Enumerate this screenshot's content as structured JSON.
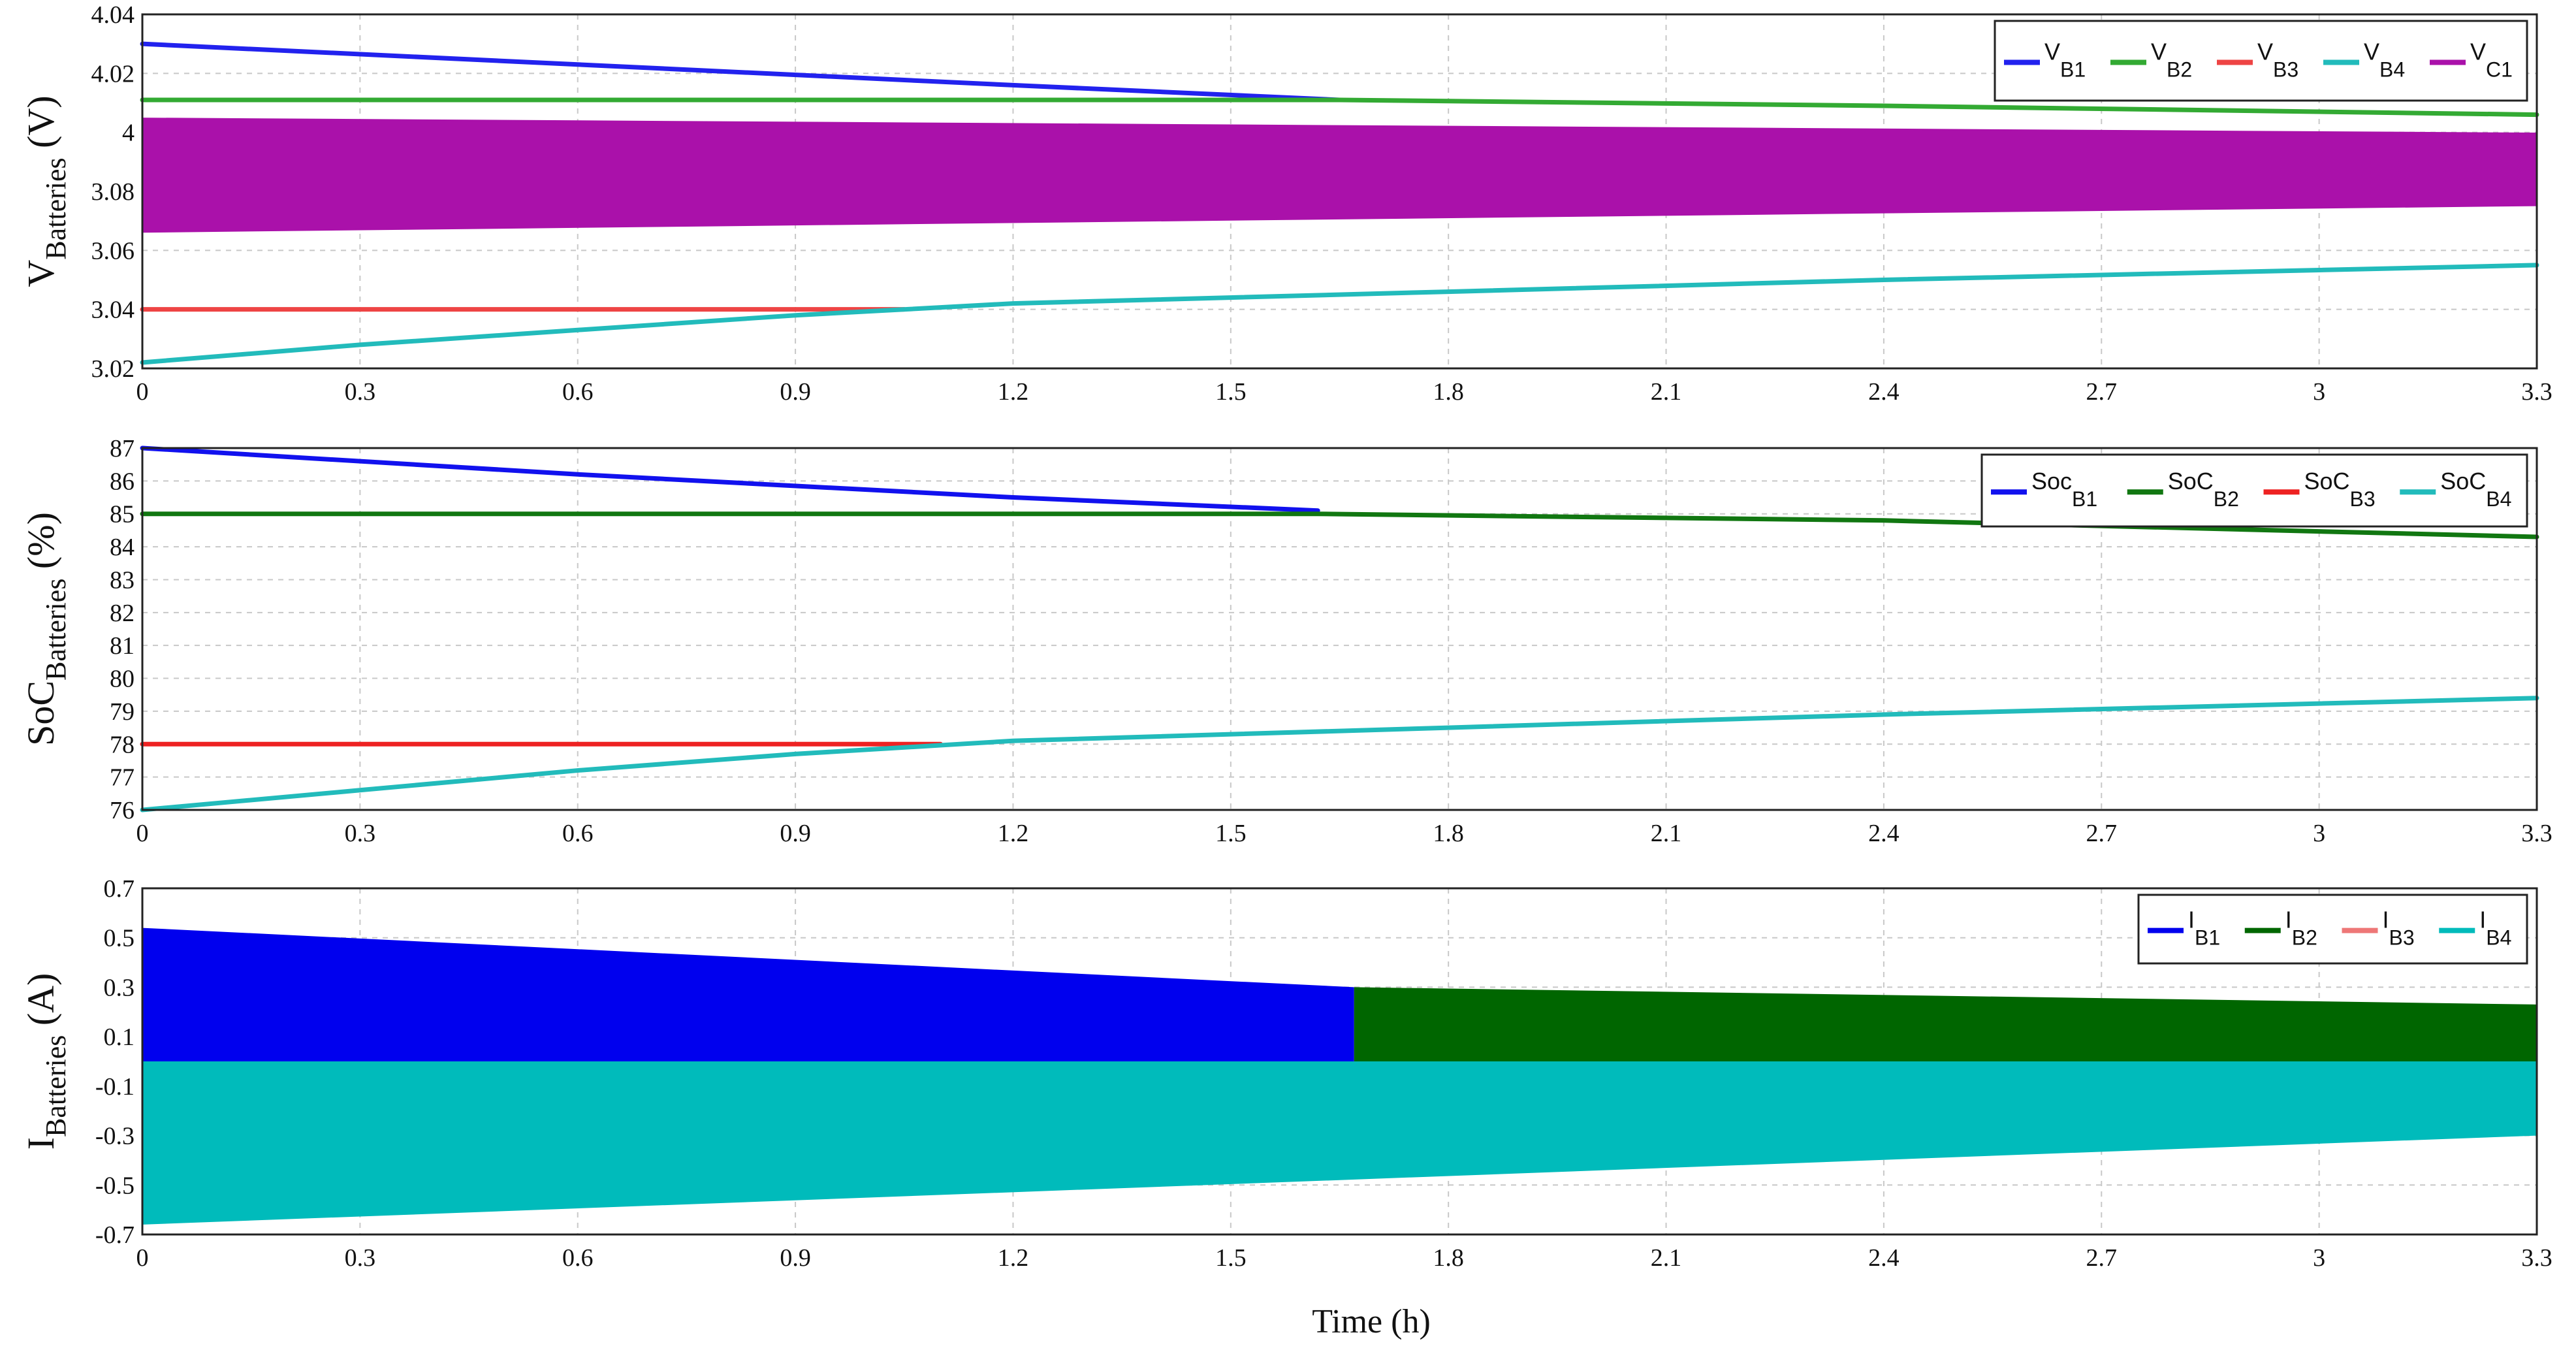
{
  "chart_data": [
    {
      "type": "line",
      "ylabel": {
        "main": "V",
        "sub": "Batteries",
        "unit": " (V)"
      },
      "xlim": [
        0,
        3.3
      ],
      "ylim": [
        3.02,
        4.04
      ],
      "x_ticks": [
        "0",
        "0.3",
        "0.6",
        "0.9",
        "1.2",
        "1.5",
        "1.8",
        "2.1",
        "2.4",
        "2.7",
        "3",
        "3.3"
      ],
      "y_ticks": [
        {
          "v": 3.02,
          "label": "3.02"
        },
        {
          "v": 3.04,
          "label": "3.04"
        },
        {
          "v": 3.06,
          "label": "3.06"
        },
        {
          "v": 3.08,
          "label": "3.08"
        },
        {
          "v": 4.0,
          "label": "4"
        },
        {
          "v": 4.02,
          "label": "4.02"
        },
        {
          "v": 4.04,
          "label": "4.04"
        }
      ],
      "y_display": [
        [
          3.02,
          0
        ],
        [
          3.04,
          1
        ],
        [
          3.06,
          2
        ],
        [
          3.08,
          3
        ],
        [
          4.0,
          4
        ],
        [
          4.02,
          5
        ],
        [
          4.04,
          6
        ]
      ],
      "grid": true,
      "legend_position": "top-right",
      "series": [
        {
          "main": "V",
          "sub": "B1",
          "color": "#2222ee",
          "kind": "line",
          "x": [
            0,
            0.6,
            1.2,
            1.65
          ],
          "y": [
            4.03,
            4.023,
            4.016,
            4.011
          ]
        },
        {
          "main": "V",
          "sub": "B2",
          "color": "#33aa33",
          "kind": "line",
          "x": [
            0,
            1.65,
            2.4,
            3.3
          ],
          "y": [
            4.011,
            4.011,
            4.009,
            4.006
          ]
        },
        {
          "main": "V",
          "sub": "B3",
          "color": "#ee4444",
          "kind": "line",
          "x": [
            0,
            1.05
          ],
          "y": [
            3.04,
            3.04
          ]
        },
        {
          "main": "V",
          "sub": "B4",
          "color": "#22bbbb",
          "kind": "line",
          "x": [
            0,
            0.3,
            0.6,
            0.9,
            1.2,
            1.8,
            2.4,
            3.3
          ],
          "y": [
            3.022,
            3.028,
            3.033,
            3.038,
            3.042,
            3.046,
            3.05,
            3.055
          ]
        },
        {
          "main": "V",
          "sub": "C1",
          "color": "#aa11aa",
          "kind": "band",
          "x": [
            0,
            3.3
          ],
          "upper": [
            4.005,
            3.996
          ],
          "lower": [
            3.066,
            3.075
          ]
        }
      ]
    },
    {
      "type": "line",
      "ylabel": {
        "main": "SoC",
        "sub": "Batteries",
        "unit": " (%)"
      },
      "xlim": [
        0,
        3.3
      ],
      "ylim": [
        76,
        87
      ],
      "x_ticks": [
        "0",
        "0.3",
        "0.6",
        "0.9",
        "1.2",
        "1.5",
        "1.8",
        "2.1",
        "2.4",
        "2.7",
        "3",
        "3.3"
      ],
      "y_ticks": [
        {
          "v": 76,
          "label": "76"
        },
        {
          "v": 77,
          "label": "77"
        },
        {
          "v": 78,
          "label": "78"
        },
        {
          "v": 79,
          "label": "79"
        },
        {
          "v": 80,
          "label": "80"
        },
        {
          "v": 81,
          "label": "81"
        },
        {
          "v": 82,
          "label": "82"
        },
        {
          "v": 83,
          "label": "83"
        },
        {
          "v": 84,
          "label": "84"
        },
        {
          "v": 85,
          "label": "85"
        },
        {
          "v": 86,
          "label": "86"
        },
        {
          "v": 87,
          "label": "87"
        }
      ],
      "grid": true,
      "legend_position": "top-right",
      "series": [
        {
          "main": "Soc",
          "sub": "B1",
          "color": "#1111ee",
          "kind": "line",
          "x": [
            0,
            0.6,
            1.2,
            1.62
          ],
          "y": [
            87,
            86.2,
            85.5,
            85.1
          ]
        },
        {
          "main": "SoC",
          "sub": "B2",
          "color": "#117711",
          "kind": "line",
          "x": [
            0,
            1.62,
            2.4,
            3.3
          ],
          "y": [
            85,
            85,
            84.8,
            84.3
          ]
        },
        {
          "main": "SoC",
          "sub": "B3",
          "color": "#ee2222",
          "kind": "line",
          "x": [
            0,
            1.1
          ],
          "y": [
            78,
            78
          ]
        },
        {
          "main": "SoC",
          "sub": "B4",
          "color": "#22bbbb",
          "kind": "line",
          "x": [
            0,
            0.3,
            0.6,
            0.9,
            1.2,
            1.8,
            2.4,
            3.3
          ],
          "y": [
            76,
            76.6,
            77.2,
            77.7,
            78.1,
            78.5,
            78.9,
            79.4
          ]
        }
      ]
    },
    {
      "type": "area",
      "ylabel": {
        "main": "I",
        "sub": "Batteries",
        "unit": " (A)"
      },
      "xlim": [
        0,
        3.3
      ],
      "ylim": [
        -0.7,
        0.7
      ],
      "x_ticks": [
        "0",
        "0.3",
        "0.6",
        "0.9",
        "1.2",
        "1.5",
        "1.8",
        "2.1",
        "2.4",
        "2.7",
        "3",
        "3.3"
      ],
      "y_ticks": [
        {
          "v": -0.7,
          "label": "-0.7"
        },
        {
          "v": -0.5,
          "label": "-0.5"
        },
        {
          "v": -0.3,
          "label": "-0.3"
        },
        {
          "v": -0.1,
          "label": "-0.1"
        },
        {
          "v": 0.1,
          "label": "0.1"
        },
        {
          "v": 0.3,
          "label": "0.3"
        },
        {
          "v": 0.5,
          "label": "0.5"
        },
        {
          "v": 0.7,
          "label": "0.7"
        }
      ],
      "grid": true,
      "legend_position": "top-right",
      "xlabel": "Time (h)",
      "series": [
        {
          "main": "I",
          "sub": "B1",
          "color": "#0000ee",
          "kind": "band",
          "x": [
            0,
            1.67
          ],
          "upper": [
            0.54,
            0.3
          ],
          "lower": [
            0,
            0
          ]
        },
        {
          "main": "I",
          "sub": "B2",
          "color": "#006600",
          "kind": "band",
          "x": [
            1.67,
            3.3
          ],
          "upper": [
            0.3,
            0.23
          ],
          "lower": [
            0,
            0
          ]
        },
        {
          "main": "I",
          "sub": "B3",
          "color": "#ee7777",
          "kind": "legend-only"
        },
        {
          "main": "I",
          "sub": "B4",
          "color": "#00bbbb",
          "kind": "band",
          "x": [
            0,
            3.3
          ],
          "upper": [
            0,
            0
          ],
          "lower": [
            -0.66,
            -0.3
          ]
        }
      ]
    }
  ]
}
